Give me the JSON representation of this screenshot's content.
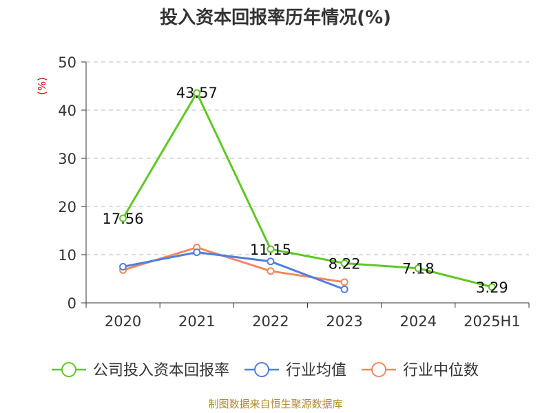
{
  "chart_data": {
    "type": "line",
    "title": "投入资本回报率历年情况(%)",
    "unit_label": "(%)",
    "categories": [
      "2020",
      "2021",
      "2022",
      "2023",
      "2024",
      "2025H1"
    ],
    "ylim": [
      0,
      50
    ],
    "yticks": [
      0,
      10,
      20,
      30,
      40,
      50
    ],
    "grid": true,
    "legend_position": "bottom",
    "series": [
      {
        "name": "公司投入资本回报率",
        "color": "#5cc91f",
        "values": [
          17.56,
          43.57,
          11.15,
          8.22,
          7.18,
          3.29
        ],
        "labels": [
          "17.56",
          "43.57",
          "11.15",
          "8.22",
          "7.18",
          "3.29"
        ]
      },
      {
        "name": "行业均值",
        "color": "#4f7fe0",
        "values": [
          7.5,
          10.5,
          8.6,
          2.8,
          null,
          null
        ]
      },
      {
        "name": "行业中位数",
        "color": "#f5875a",
        "values": [
          6.8,
          11.5,
          6.6,
          4.3,
          null,
          null
        ]
      }
    ]
  },
  "source": "制图数据来自恒生聚源数据库"
}
